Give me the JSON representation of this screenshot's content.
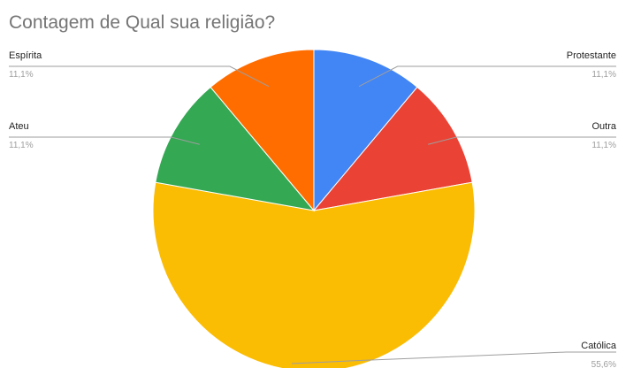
{
  "chart_data": {
    "type": "pie",
    "title": "Contagem de Qual sua religião?",
    "slices": [
      {
        "label": "Protestante",
        "value": 11.1,
        "value_label": "11,1%",
        "color": "#4285f4"
      },
      {
        "label": "Outra",
        "value": 11.1,
        "value_label": "11,1%",
        "color": "#ea4335"
      },
      {
        "label": "Católica",
        "value": 55.6,
        "value_label": "55,6%",
        "color": "#fbbc04"
      },
      {
        "label": "Ateu",
        "value": 11.1,
        "value_label": "11,1%",
        "color": "#34a853"
      },
      {
        "label": "Espírita",
        "value": 11.1,
        "value_label": "11,1%",
        "color": "#ff6d01"
      }
    ],
    "start_angle_deg": 0,
    "direction": "clockwise",
    "legend": "labels-with-leader-lines"
  }
}
